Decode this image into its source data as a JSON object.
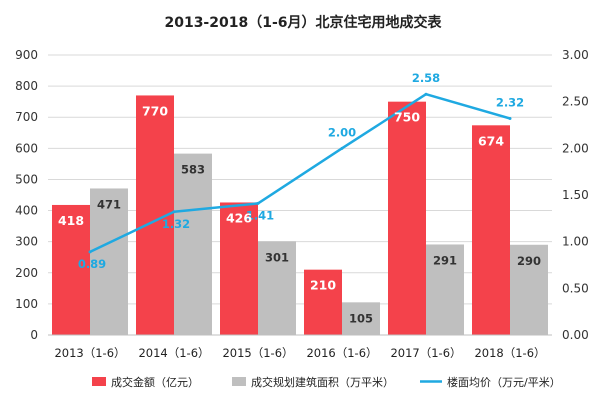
{
  "chart_data": {
    "type": "bar",
    "title": "2013-2018（1-6月）北京住宅用地成交表",
    "categories": [
      "2013（1-6）",
      "2014（1-6）",
      "2015（1-6）",
      "2016（1-6）",
      "2017（1-6）",
      "2018（1-6）"
    ],
    "series": [
      {
        "name": "成交金额（亿元）",
        "type": "bar",
        "axis": "left",
        "color": "#f4424b",
        "values": [
          418,
          770,
          426,
          210,
          750,
          674
        ],
        "labels": [
          "418",
          "770",
          "426",
          "210",
          "750",
          "674"
        ]
      },
      {
        "name": "成交规划建筑面积（万平米）",
        "type": "bar",
        "axis": "left",
        "color": "#bfbfbf",
        "values": [
          471,
          583,
          301,
          105,
          291,
          290
        ],
        "labels": [
          "471",
          "583",
          "301",
          "105",
          "291",
          "290"
        ]
      },
      {
        "name": "楼面均价（万元/平米）",
        "type": "line",
        "axis": "right",
        "color": "#1fa9e1",
        "values": [
          0.89,
          1.32,
          1.41,
          2.0,
          2.58,
          2.32
        ],
        "labels": [
          "0.89",
          "1.32",
          "1.41",
          "2.00",
          "2.58",
          "2.32"
        ]
      }
    ],
    "y_left": {
      "min": 0,
      "max": 900,
      "step": 100,
      "ticks": [
        "0",
        "100",
        "200",
        "300",
        "400",
        "500",
        "600",
        "700",
        "800",
        "900"
      ]
    },
    "y_right": {
      "min": 0,
      "max": 3,
      "step": 0.5,
      "ticks": [
        "0.00",
        "0.50",
        "1.00",
        "1.50",
        "2.00",
        "2.50",
        "3.00"
      ]
    },
    "grid": true,
    "legend_position": "bottom"
  }
}
